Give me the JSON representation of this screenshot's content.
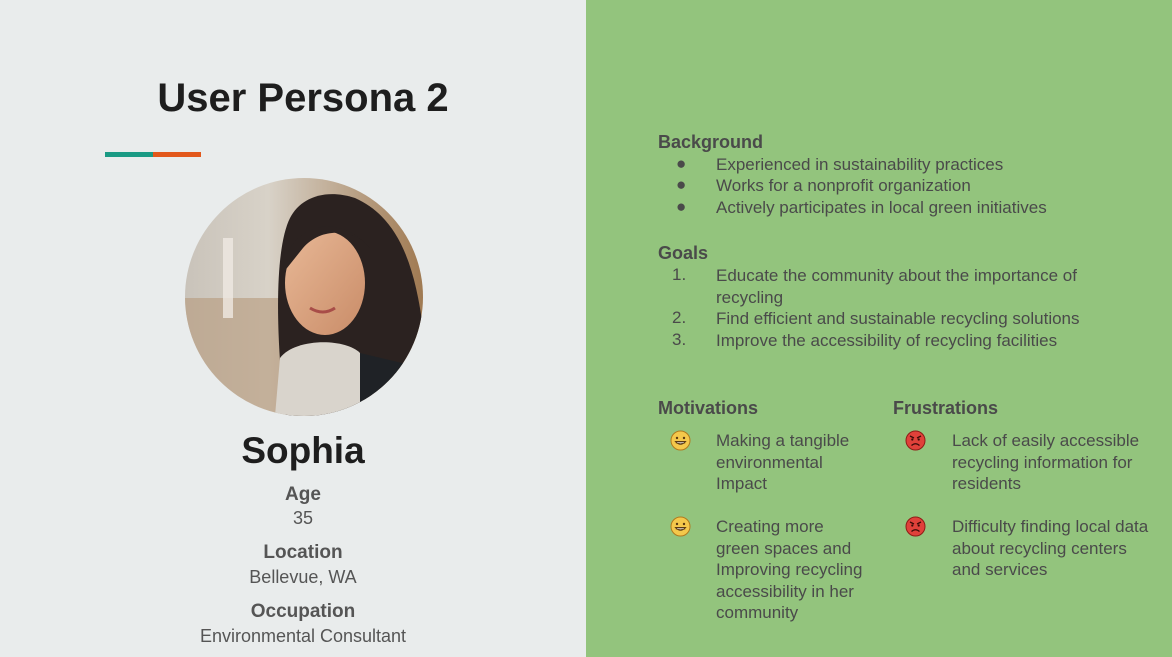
{
  "colors": {
    "left_bg": "#e9ecec",
    "right_bg": "#93c47d",
    "accent_teal": "#1a9a84",
    "accent_orange": "#e2581b",
    "motivation_emoji": "#f4c84b",
    "frustration_emoji": "#e0413a"
  },
  "left": {
    "title": "User Persona 2",
    "avatar_alt": "Photo of Sophia",
    "name": "Sophia",
    "age_label": "Age",
    "age_value": "35",
    "location_label": "Location",
    "location_value": "Bellevue, WA",
    "occupation_label": "Occupation",
    "occupation_value": "Environmental Consultant"
  },
  "right": {
    "background_heading": "Background",
    "background_items": [
      "Experienced in sustainability practices",
      "Works for a nonprofit organization",
      "Actively participates in local green initiatives"
    ],
    "goals_heading": "Goals",
    "goals_items": [
      {
        "num": "1.",
        "lines": [
          "Educate the community about the importance of",
          "recycling"
        ]
      },
      {
        "num": "2.",
        "lines": [
          "Find efficient and sustainable recycling solutions"
        ]
      },
      {
        "num": "3.",
        "lines": [
          "Improve the accessibility of recycling facilities"
        ]
      }
    ],
    "motivations_heading": "Motivations",
    "motivations_items": [
      {
        "icon": "grinning-face-icon",
        "lines": [
          "Making a tangible",
          "environmental",
          "Impact"
        ]
      },
      {
        "icon": "grinning-face-icon",
        "lines": [
          "Creating more",
          "green spaces and",
          "Improving recycling",
          "accessibility in her",
          "community"
        ]
      }
    ],
    "frustrations_heading": "Frustrations",
    "frustrations_items": [
      {
        "icon": "angry-face-icon",
        "lines": [
          "Lack of easily accessible",
          "recycling information for",
          "residents"
        ]
      },
      {
        "icon": "angry-face-icon",
        "lines": [
          "Difficulty finding local data",
          "about recycling centers",
          "and services"
        ]
      }
    ]
  }
}
